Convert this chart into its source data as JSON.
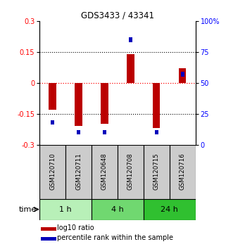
{
  "title": "GDS3433 / 43341",
  "samples": [
    "GSM120710",
    "GSM120711",
    "GSM120648",
    "GSM120708",
    "GSM120715",
    "GSM120716"
  ],
  "log10_ratio": [
    -0.13,
    -0.21,
    -0.2,
    0.14,
    -0.22,
    0.07
  ],
  "percentile_rank": [
    18,
    10,
    10,
    85,
    10,
    57
  ],
  "groups": [
    {
      "label": "1 h",
      "indices": [
        0,
        1
      ],
      "color": "#b8f0b8"
    },
    {
      "label": "4 h",
      "indices": [
        2,
        3
      ],
      "color": "#70d870"
    },
    {
      "label": "24 h",
      "indices": [
        4,
        5
      ],
      "color": "#30c030"
    }
  ],
  "ylim_left": [
    -0.3,
    0.3
  ],
  "ylim_right": [
    0,
    100
  ],
  "yticks_left": [
    -0.3,
    -0.15,
    0,
    0.15,
    0.3
  ],
  "yticks_right": [
    0,
    25,
    50,
    75,
    100
  ],
  "bar_color_red": "#bb0000",
  "bar_color_blue": "#0000bb",
  "legend_red": "log10 ratio",
  "legend_blue": "percentile rank within the sample",
  "time_label": "time",
  "sample_box_color": "#cccccc"
}
